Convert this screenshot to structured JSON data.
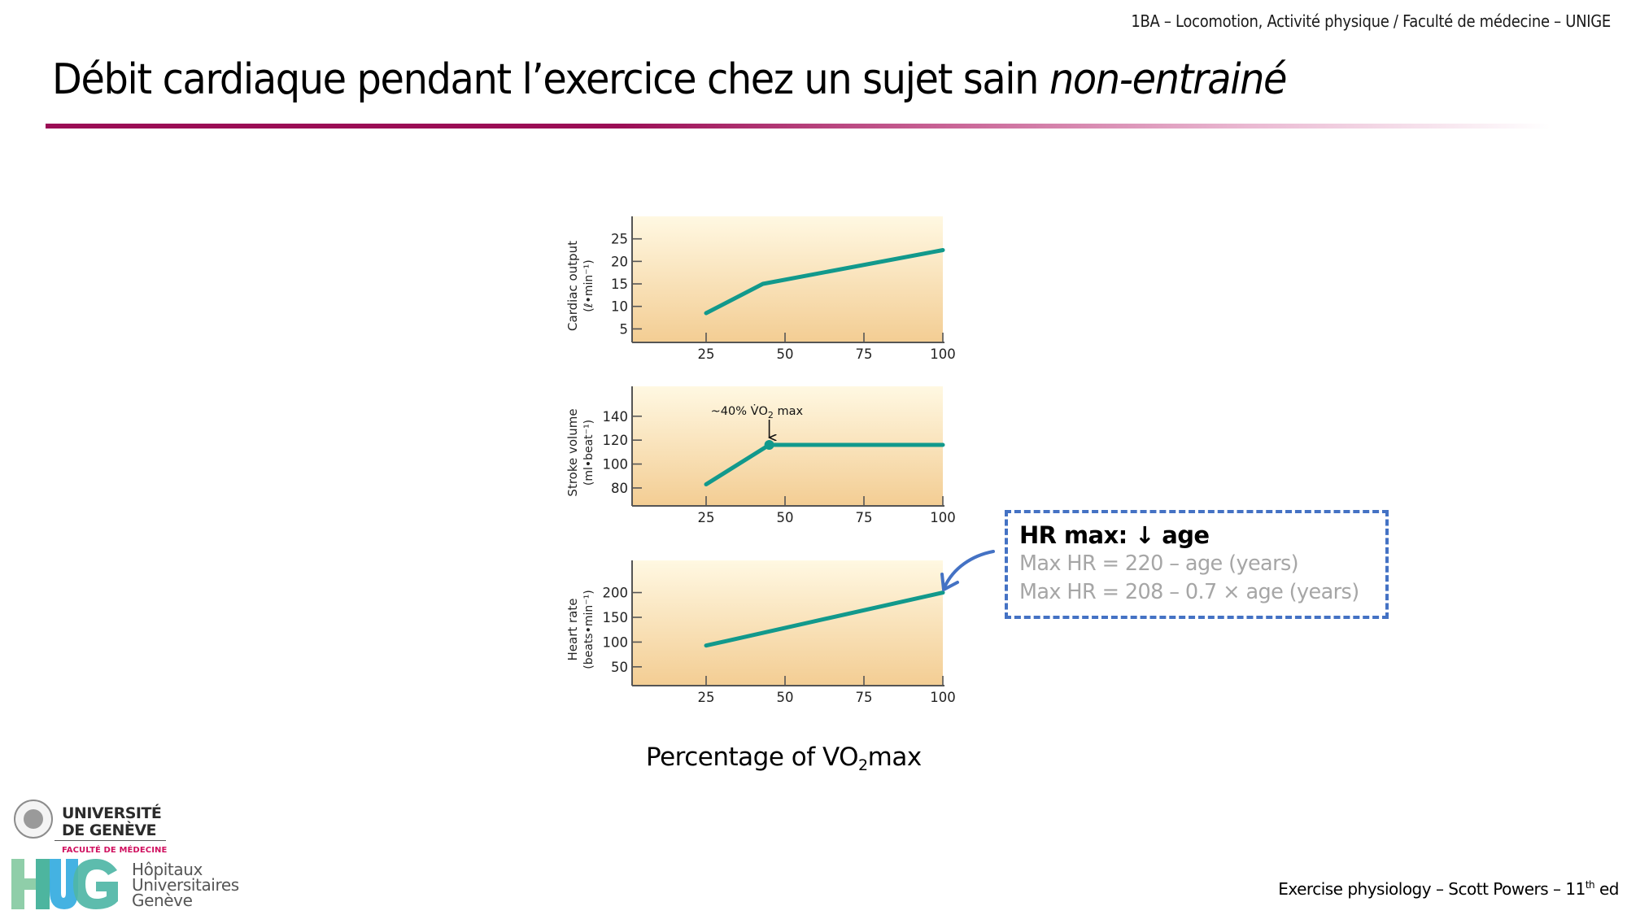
{
  "header": {
    "course": "1BA – Locomotion, Activité physique / Faculté de médecine – UNIGE"
  },
  "title": {
    "regular": "Débit cardiaque pendant l’exercice chez un sujet sain ",
    "italic": "non-entrainé"
  },
  "colors": {
    "title_rule": "#9b0d55",
    "line": "#12998c",
    "panel_top": "#fff8e2",
    "panel_bottom": "#f3cd93",
    "axis": "#555555",
    "callout_border": "#4472c4",
    "callout_formula": "#a6a6a6"
  },
  "figure": {
    "xlabel_main": "Percentage of VO",
    "xlabel_sub": "2",
    "xlabel_tail": "max"
  },
  "chart_data": [
    {
      "type": "line",
      "title": "",
      "ylabel": "Cardiac output",
      "ylabel_unit": "(ℓ•min⁻¹)",
      "xlabel": "Percentage of VO2max",
      "x_ticks": [
        25,
        50,
        75,
        100
      ],
      "y_ticks": [
        5,
        10,
        15,
        20,
        25
      ],
      "xlim": [
        0,
        100
      ],
      "ylim": [
        2,
        30
      ],
      "series": [
        {
          "name": "Cardiac output",
          "x": [
            25,
            43,
            100
          ],
          "y": [
            8.5,
            15,
            22.5
          ]
        }
      ]
    },
    {
      "type": "line",
      "title": "",
      "ylabel": "Stroke volume",
      "ylabel_unit": "(ml•beat⁻¹)",
      "xlabel": "Percentage of VO2max",
      "x_ticks": [
        25,
        50,
        75,
        100
      ],
      "y_ticks": [
        80,
        100,
        120,
        140
      ],
      "xlim": [
        0,
        100
      ],
      "ylim": [
        65,
        165
      ],
      "series": [
        {
          "name": "Stroke volume",
          "x": [
            25,
            45,
            100
          ],
          "y": [
            83,
            116,
            116
          ]
        }
      ],
      "annotation": {
        "text_prefix": "~40%  V̇O",
        "text_sub": "2",
        "text_suffix": " max",
        "x": 45,
        "y": 116,
        "marker": true
      }
    },
    {
      "type": "line",
      "title": "",
      "ylabel": "Heart rate",
      "ylabel_unit": "(beats•min⁻¹)",
      "xlabel": "Percentage of VO2max",
      "x_ticks": [
        25,
        50,
        75,
        100
      ],
      "y_ticks": [
        50,
        100,
        150,
        200
      ],
      "xlim": [
        0,
        100
      ],
      "ylim": [
        12,
        265
      ],
      "series": [
        {
          "name": "Heart rate",
          "x": [
            25,
            100
          ],
          "y": [
            93,
            200
          ]
        }
      ]
    }
  ],
  "callout": {
    "heading": "HR max: ↓ age",
    "formula_1": "Max HR = 220 – age (years)",
    "formula_2": "Max HR = 208 – 0.7 × age (years)"
  },
  "footer": {
    "reference_main": "Exercise physiology – Scott Powers – 11",
    "reference_sup": "th",
    "reference_tail": " ed"
  },
  "logos": {
    "unige_line1": "UNIVERSITÉ",
    "unige_line2": "DE GENÈVE",
    "unige_faculty": "FACULTÉ DE MÉDECINE",
    "hug_line1": "Hôpitaux",
    "hug_line2": "Universitaires",
    "hug_line3": "Genève"
  }
}
